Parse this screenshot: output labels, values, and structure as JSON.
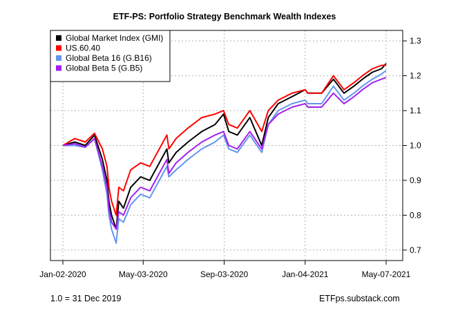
{
  "chart_data": {
    "type": "line",
    "title": "ETF-PS: Portfolio Strategy Benchmark Wealth Indexes",
    "xlabel": "",
    "ylabel": "",
    "x_start": "2020-01-02",
    "x_end": "2021-05-07",
    "x_ticks": [
      {
        "date": "2020-01-02",
        "label": "Jan-02-2020"
      },
      {
        "date": "2020-05-03",
        "label": "May-03-2020"
      },
      {
        "date": "2020-09-03",
        "label": "Sep-03-2020"
      },
      {
        "date": "2021-01-04",
        "label": "Jan-04-2021"
      },
      {
        "date": "2021-05-07",
        "label": "May-07-2021"
      }
    ],
    "y_ticks": [
      "0.7",
      "0.8",
      "0.9",
      "1.0",
      "1.1",
      "1.2",
      "1.3"
    ],
    "ylim": [
      0.67,
      1.33
    ],
    "y_axis_side": "right",
    "grid": true,
    "legend_position": "top-left",
    "series": [
      {
        "name": "Global Market Index (GMI)",
        "color": "#000000",
        "x": [
          "2020-01-02",
          "2020-01-20",
          "2020-02-05",
          "2020-02-19",
          "2020-03-02",
          "2020-03-09",
          "2020-03-12",
          "2020-03-16",
          "2020-03-23",
          "2020-03-27",
          "2020-04-03",
          "2020-04-14",
          "2020-04-29",
          "2020-05-13",
          "2020-06-08",
          "2020-06-11",
          "2020-06-22",
          "2020-07-10",
          "2020-07-31",
          "2020-08-20",
          "2020-09-02",
          "2020-09-10",
          "2020-09-23",
          "2020-10-12",
          "2020-10-30",
          "2020-11-09",
          "2020-11-24",
          "2020-12-15",
          "2021-01-04",
          "2021-01-08",
          "2021-01-29",
          "2021-02-16",
          "2021-03-04",
          "2021-03-19",
          "2021-04-01",
          "2021-04-16",
          "2021-04-30",
          "2021-05-07"
        ],
        "values": [
          1.0,
          1.01,
          1.0,
          1.03,
          0.96,
          0.9,
          0.84,
          0.8,
          0.76,
          0.84,
          0.82,
          0.88,
          0.91,
          0.9,
          0.99,
          0.95,
          0.98,
          1.01,
          1.04,
          1.06,
          1.09,
          1.04,
          1.03,
          1.08,
          1.0,
          1.08,
          1.12,
          1.14,
          1.16,
          1.15,
          1.15,
          1.19,
          1.15,
          1.17,
          1.19,
          1.21,
          1.22,
          1.235
        ]
      },
      {
        "name": "US.60.40",
        "color": "#ff0000",
        "x": [
          "2020-01-02",
          "2020-01-20",
          "2020-02-05",
          "2020-02-19",
          "2020-03-02",
          "2020-03-09",
          "2020-03-12",
          "2020-03-16",
          "2020-03-23",
          "2020-03-27",
          "2020-04-03",
          "2020-04-14",
          "2020-04-29",
          "2020-05-13",
          "2020-06-08",
          "2020-06-11",
          "2020-06-22",
          "2020-07-10",
          "2020-07-31",
          "2020-08-20",
          "2020-09-02",
          "2020-09-10",
          "2020-09-23",
          "2020-10-12",
          "2020-10-30",
          "2020-11-09",
          "2020-11-24",
          "2020-12-15",
          "2021-01-04",
          "2021-01-08",
          "2021-01-29",
          "2021-02-16",
          "2021-03-04",
          "2021-03-19",
          "2021-04-01",
          "2021-04-16",
          "2021-04-30",
          "2021-05-07"
        ],
        "values": [
          1.0,
          1.02,
          1.01,
          1.035,
          0.99,
          0.94,
          0.88,
          0.84,
          0.8,
          0.88,
          0.87,
          0.93,
          0.95,
          0.94,
          1.03,
          0.99,
          1.02,
          1.05,
          1.08,
          1.09,
          1.1,
          1.06,
          1.05,
          1.1,
          1.04,
          1.1,
          1.13,
          1.15,
          1.16,
          1.15,
          1.15,
          1.2,
          1.16,
          1.18,
          1.2,
          1.22,
          1.23,
          1.23
        ]
      },
      {
        "name": "Global Beta 16 (G.B16)",
        "color": "#6495ed",
        "x": [
          "2020-01-02",
          "2020-01-20",
          "2020-02-05",
          "2020-02-19",
          "2020-03-02",
          "2020-03-09",
          "2020-03-12",
          "2020-03-16",
          "2020-03-23",
          "2020-03-27",
          "2020-04-03",
          "2020-04-14",
          "2020-04-29",
          "2020-05-13",
          "2020-06-08",
          "2020-06-11",
          "2020-06-22",
          "2020-07-10",
          "2020-07-31",
          "2020-08-20",
          "2020-09-02",
          "2020-09-10",
          "2020-09-23",
          "2020-10-12",
          "2020-10-30",
          "2020-11-09",
          "2020-11-24",
          "2020-12-15",
          "2021-01-04",
          "2021-01-08",
          "2021-01-29",
          "2021-02-16",
          "2021-03-04",
          "2021-03-19",
          "2021-04-01",
          "2021-04-16",
          "2021-04-30",
          "2021-05-07"
        ],
        "values": [
          1.0,
          1.0,
          0.995,
          1.02,
          0.93,
          0.86,
          0.8,
          0.76,
          0.72,
          0.79,
          0.78,
          0.83,
          0.86,
          0.85,
          0.94,
          0.91,
          0.93,
          0.96,
          0.99,
          1.01,
          1.03,
          0.99,
          0.98,
          1.03,
          0.98,
          1.06,
          1.1,
          1.12,
          1.13,
          1.12,
          1.12,
          1.17,
          1.13,
          1.15,
          1.17,
          1.19,
          1.205,
          1.215
        ]
      },
      {
        "name": "Global Beta 5 (G.B5)",
        "color": "#a020f0",
        "x": [
          "2020-01-02",
          "2020-01-20",
          "2020-02-05",
          "2020-02-19",
          "2020-03-02",
          "2020-03-09",
          "2020-03-12",
          "2020-03-16",
          "2020-03-23",
          "2020-03-27",
          "2020-04-03",
          "2020-04-14",
          "2020-04-29",
          "2020-05-13",
          "2020-06-08",
          "2020-06-11",
          "2020-06-22",
          "2020-07-10",
          "2020-07-31",
          "2020-08-20",
          "2020-09-02",
          "2020-09-10",
          "2020-09-23",
          "2020-10-12",
          "2020-10-30",
          "2020-11-09",
          "2020-11-24",
          "2020-12-15",
          "2021-01-04",
          "2021-01-08",
          "2021-01-29",
          "2021-02-16",
          "2021-03-04",
          "2021-03-19",
          "2021-04-01",
          "2021-04-16",
          "2021-04-30",
          "2021-05-07"
        ],
        "values": [
          1.0,
          1.005,
          0.995,
          1.02,
          0.94,
          0.88,
          0.82,
          0.78,
          0.76,
          0.81,
          0.8,
          0.85,
          0.88,
          0.87,
          0.96,
          0.92,
          0.95,
          0.98,
          1.01,
          1.03,
          1.04,
          1.0,
          0.99,
          1.04,
          0.99,
          1.06,
          1.09,
          1.11,
          1.12,
          1.11,
          1.11,
          1.15,
          1.12,
          1.14,
          1.16,
          1.18,
          1.19,
          1.195
        ]
      }
    ]
  },
  "footer": {
    "left": "1.0 = 31 Dec 2019",
    "right": "ETFps.substack.com"
  }
}
